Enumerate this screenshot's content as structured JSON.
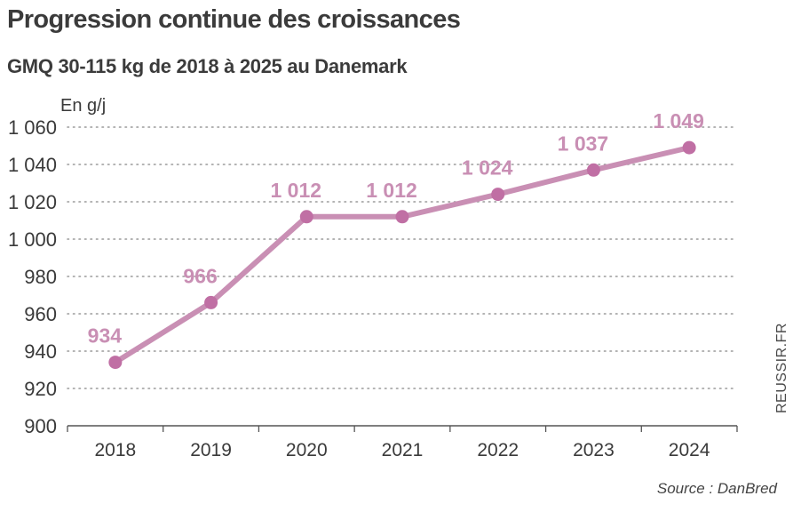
{
  "title": "Progression continue des croissances",
  "subtitle": "GMQ 30-115 kg de 2018 à 2025 au Danemark",
  "unit_label": "En g/j",
  "credit": "REUSSIR.FR",
  "source": "Source : DanBred",
  "colors": {
    "line": "#c98fb4",
    "marker": "#c06fa4",
    "grid": "#9a9a9a",
    "axis": "#555555"
  },
  "chart_data": {
    "type": "line",
    "title": "Progression continue des croissances",
    "subtitle": "GMQ 30-115 kg de 2018 à 2025 au Danemark",
    "ylabel": "En g/j",
    "xlabel": "",
    "categories": [
      "2018",
      "2019",
      "2020",
      "2021",
      "2022",
      "2023",
      "2024"
    ],
    "series": [
      {
        "values": [
          934,
          966,
          1012,
          1012,
          1024,
          1037,
          1049
        ]
      }
    ],
    "data_labels": [
      "934",
      "966",
      "1 012",
      "1 012",
      "1 024",
      "1 037",
      "1 049"
    ],
    "ylim": [
      900,
      1060
    ],
    "yticks": [
      900,
      920,
      940,
      960,
      980,
      1000,
      1020,
      1040,
      1060
    ],
    "ytick_labels": [
      "900",
      "920",
      "940",
      "960",
      "980",
      "1 000",
      "1 020",
      "1 040",
      "1 060"
    ],
    "grid": "horizontal dotted"
  }
}
